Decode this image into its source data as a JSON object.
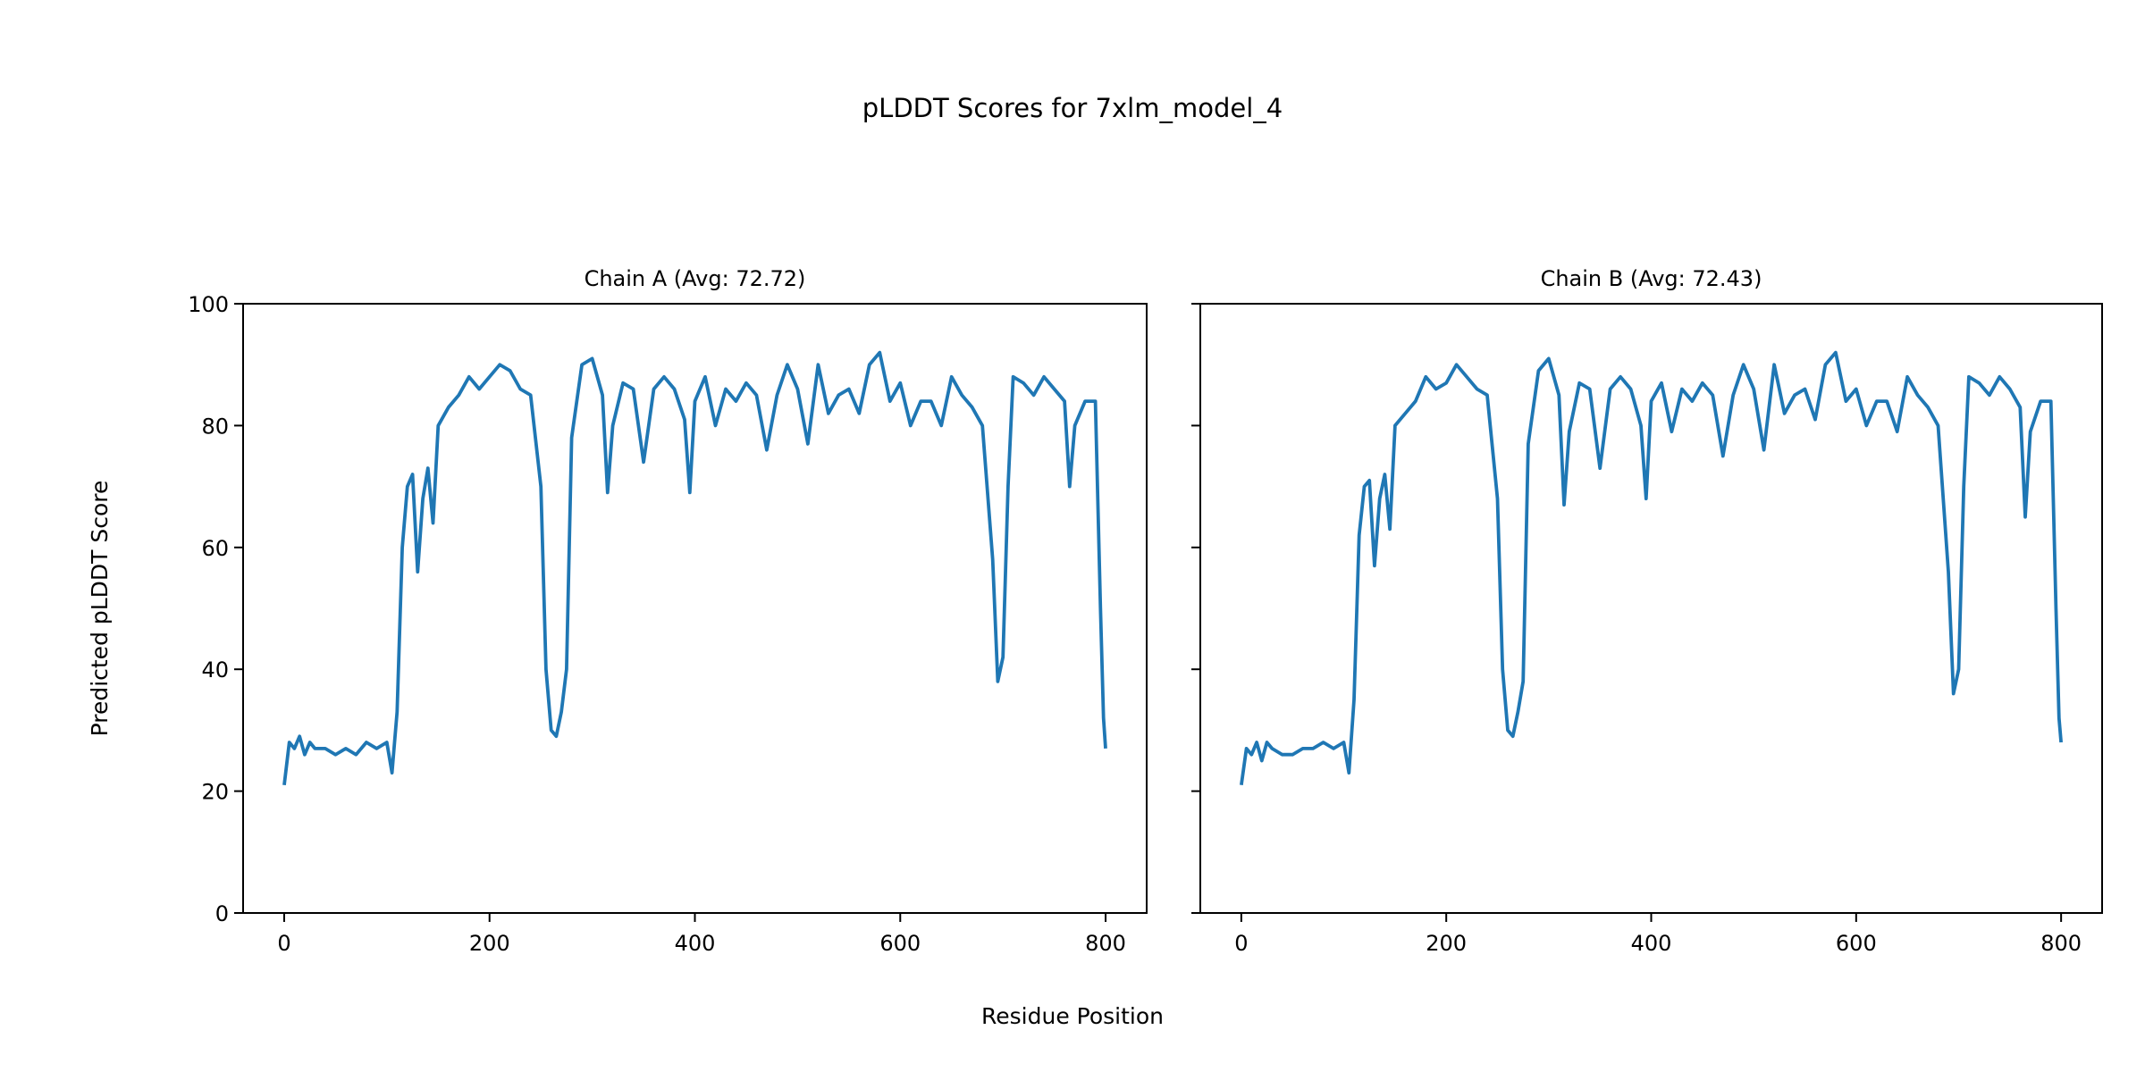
{
  "chart_data": {
    "type": "line",
    "title": "pLDDT Scores for 7xlm_model_4",
    "xlabel": "Residue Position",
    "ylabel": "Predicted pLDDT Score",
    "ylim": [
      0,
      100
    ],
    "xlim": [
      -40,
      840
    ],
    "xticks": [
      0,
      200,
      400,
      600,
      800
    ],
    "yticks": [
      0,
      20,
      40,
      60,
      80,
      100
    ],
    "line_color": "#1f77b4",
    "panels": [
      {
        "title": "Chain A (Avg: 72.72)",
        "x": [
          0,
          5,
          10,
          15,
          20,
          25,
          30,
          40,
          50,
          60,
          70,
          80,
          90,
          100,
          105,
          110,
          115,
          120,
          125,
          130,
          135,
          140,
          145,
          150,
          160,
          170,
          180,
          190,
          200,
          210,
          220,
          230,
          240,
          250,
          255,
          260,
          265,
          270,
          275,
          280,
          290,
          300,
          310,
          315,
          320,
          330,
          340,
          350,
          360,
          370,
          380,
          390,
          395,
          400,
          410,
          420,
          430,
          440,
          450,
          460,
          470,
          480,
          490,
          500,
          510,
          520,
          530,
          540,
          550,
          560,
          570,
          580,
          590,
          600,
          610,
          620,
          630,
          640,
          650,
          660,
          670,
          680,
          690,
          695,
          700,
          705,
          710,
          720,
          730,
          740,
          750,
          760,
          765,
          770,
          780,
          790,
          795,
          798,
          800
        ],
        "y": [
          21,
          28,
          27,
          29,
          26,
          28,
          27,
          27,
          26,
          27,
          26,
          28,
          27,
          28,
          23,
          33,
          60,
          70,
          72,
          56,
          68,
          73,
          64,
          80,
          83,
          85,
          88,
          86,
          88,
          90,
          89,
          86,
          85,
          70,
          40,
          30,
          29,
          33,
          40,
          78,
          90,
          91,
          85,
          69,
          80,
          87,
          86,
          74,
          86,
          88,
          86,
          81,
          69,
          84,
          88,
          80,
          86,
          84,
          87,
          85,
          76,
          85,
          90,
          86,
          77,
          90,
          82,
          85,
          86,
          82,
          90,
          92,
          84,
          87,
          80,
          84,
          84,
          80,
          88,
          85,
          83,
          80,
          58,
          38,
          42,
          70,
          88,
          87,
          85,
          88,
          86,
          84,
          70,
          80,
          84,
          84,
          50,
          32,
          27
        ]
      },
      {
        "title": "Chain B (Avg: 72.43)",
        "x": [
          0,
          5,
          10,
          15,
          20,
          25,
          30,
          40,
          50,
          60,
          70,
          80,
          90,
          100,
          105,
          110,
          115,
          120,
          125,
          130,
          135,
          140,
          145,
          150,
          160,
          170,
          180,
          190,
          200,
          210,
          220,
          230,
          240,
          250,
          255,
          260,
          265,
          270,
          275,
          280,
          290,
          300,
          310,
          315,
          320,
          330,
          340,
          350,
          360,
          370,
          380,
          390,
          395,
          400,
          410,
          420,
          430,
          440,
          450,
          460,
          470,
          480,
          490,
          500,
          510,
          520,
          530,
          540,
          550,
          560,
          570,
          580,
          590,
          600,
          610,
          620,
          630,
          640,
          650,
          660,
          670,
          680,
          690,
          695,
          700,
          705,
          710,
          720,
          730,
          740,
          750,
          760,
          765,
          770,
          780,
          790,
          795,
          798,
          800
        ],
        "y": [
          21,
          27,
          26,
          28,
          25,
          28,
          27,
          26,
          26,
          27,
          27,
          28,
          27,
          28,
          23,
          35,
          62,
          70,
          71,
          57,
          68,
          72,
          63,
          80,
          82,
          84,
          88,
          86,
          87,
          90,
          88,
          86,
          85,
          68,
          40,
          30,
          29,
          33,
          38,
          77,
          89,
          91,
          85,
          67,
          79,
          87,
          86,
          73,
          86,
          88,
          86,
          80,
          68,
          84,
          87,
          79,
          86,
          84,
          87,
          85,
          75,
          85,
          90,
          86,
          76,
          90,
          82,
          85,
          86,
          81,
          90,
          92,
          84,
          86,
          80,
          84,
          84,
          79,
          88,
          85,
          83,
          80,
          56,
          36,
          40,
          70,
          88,
          87,
          85,
          88,
          86,
          83,
          65,
          79,
          84,
          84,
          50,
          32,
          28
        ]
      }
    ]
  }
}
